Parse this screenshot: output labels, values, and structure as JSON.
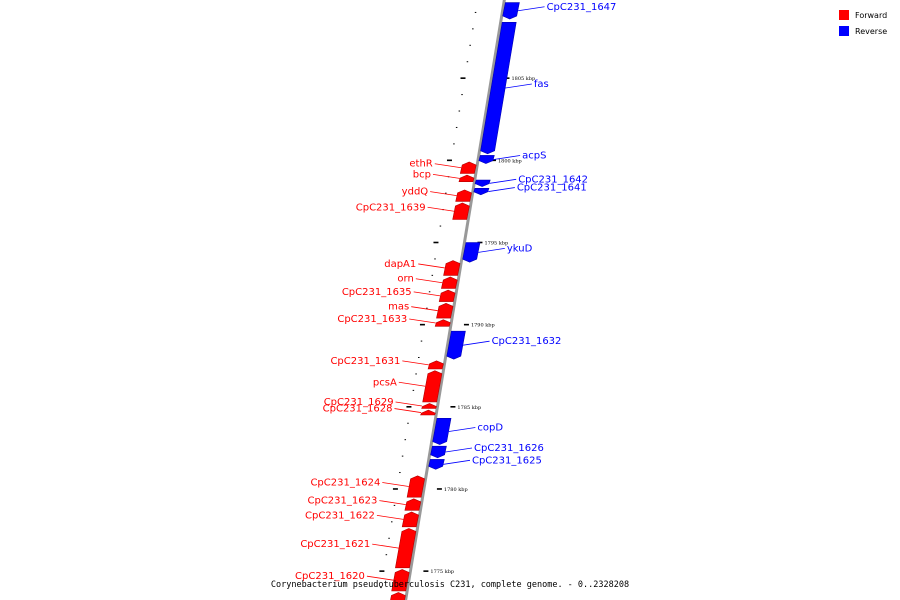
{
  "colors": {
    "forward": "#ff0000",
    "reverse": "#0000ff",
    "backbone": "#999999"
  },
  "legend": [
    {
      "strand": "forward",
      "label": "Forward"
    },
    {
      "strand": "reverse",
      "label": "Reverse"
    }
  ],
  "caption": "Corynebacterium pseudotuberculosis C231, complete genome. - 0..2328208",
  "scale": {
    "start_kbp": 1773,
    "end_kbp": 1810
  },
  "ticks": [
    {
      "kbp": 1805,
      "label": "1805 kbp"
    },
    {
      "kbp": 1800,
      "label": "1800 kbp"
    },
    {
      "kbp": 1795,
      "label": "1795 kbp"
    },
    {
      "kbp": 1790,
      "label": "1790 kbp"
    },
    {
      "kbp": 1785,
      "label": "1785 kbp"
    },
    {
      "kbp": 1780,
      "label": "1780 kbp"
    },
    {
      "kbp": 1775,
      "label": "1775 kbp"
    }
  ],
  "genes": [
    {
      "name": "CpC231_1647",
      "strand": "reverse",
      "from": 1808.6,
      "to": 1809.6
    },
    {
      "name": "fas",
      "strand": "reverse",
      "from": 1800.4,
      "to": 1808.4
    },
    {
      "name": "acpS",
      "strand": "reverse",
      "from": 1799.8,
      "to": 1800.3
    },
    {
      "name": "ethR",
      "strand": "forward",
      "from": 1799.2,
      "to": 1799.9
    },
    {
      "name": "bcp",
      "strand": "forward",
      "from": 1798.7,
      "to": 1799.1
    },
    {
      "name": "CpC231_1642",
      "strand": "reverse",
      "from": 1798.4,
      "to": 1798.8
    },
    {
      "name": "CpC231_1641",
      "strand": "reverse",
      "from": 1797.9,
      "to": 1798.3
    },
    {
      "name": "yddQ",
      "strand": "forward",
      "from": 1797.5,
      "to": 1798.2
    },
    {
      "name": "CpC231_1639",
      "strand": "forward",
      "from": 1796.4,
      "to": 1797.4
    },
    {
      "name": "ykuD",
      "strand": "reverse",
      "from": 1793.8,
      "to": 1795.0
    },
    {
      "name": "dapA1",
      "strand": "forward",
      "from": 1793.0,
      "to": 1793.9
    },
    {
      "name": "orn",
      "strand": "forward",
      "from": 1792.2,
      "to": 1792.9
    },
    {
      "name": "CpC231_1635",
      "strand": "forward",
      "from": 1791.4,
      "to": 1792.1
    },
    {
      "name": "mas",
      "strand": "forward",
      "from": 1790.4,
      "to": 1791.3
    },
    {
      "name": "CpC231_1633",
      "strand": "forward",
      "from": 1789.9,
      "to": 1790.3
    },
    {
      "name": "CpC231_1632",
      "strand": "reverse",
      "from": 1787.9,
      "to": 1789.6
    },
    {
      "name": "CpC231_1631",
      "strand": "forward",
      "from": 1787.3,
      "to": 1787.8
    },
    {
      "name": "pcsA",
      "strand": "forward",
      "from": 1785.3,
      "to": 1787.2
    },
    {
      "name": "CpC231_1629",
      "strand": "forward",
      "from": 1784.9,
      "to": 1785.2
    },
    {
      "name": "CpC231_1628",
      "strand": "forward",
      "from": 1784.5,
      "to": 1784.8
    },
    {
      "name": "copD",
      "strand": "reverse",
      "from": 1782.7,
      "to": 1784.3
    },
    {
      "name": "CpC231_1626",
      "strand": "reverse",
      "from": 1781.9,
      "to": 1782.6
    },
    {
      "name": "CpC231_1625",
      "strand": "reverse",
      "from": 1781.2,
      "to": 1781.8
    },
    {
      "name": "CpC231_1624",
      "strand": "forward",
      "from": 1779.5,
      "to": 1780.8
    },
    {
      "name": "CpC231_1623",
      "strand": "forward",
      "from": 1778.7,
      "to": 1779.4
    },
    {
      "name": "CpC231_1622",
      "strand": "forward",
      "from": 1777.7,
      "to": 1778.6
    },
    {
      "name": "CpC231_1621",
      "strand": "forward",
      "from": 1775.2,
      "to": 1777.6
    },
    {
      "name": "CpC231_1620",
      "strand": "forward",
      "from": 1773.8,
      "to": 1775.1
    },
    {
      "name": "",
      "strand": "forward",
      "from": 1772.6,
      "to": 1773.7
    }
  ]
}
